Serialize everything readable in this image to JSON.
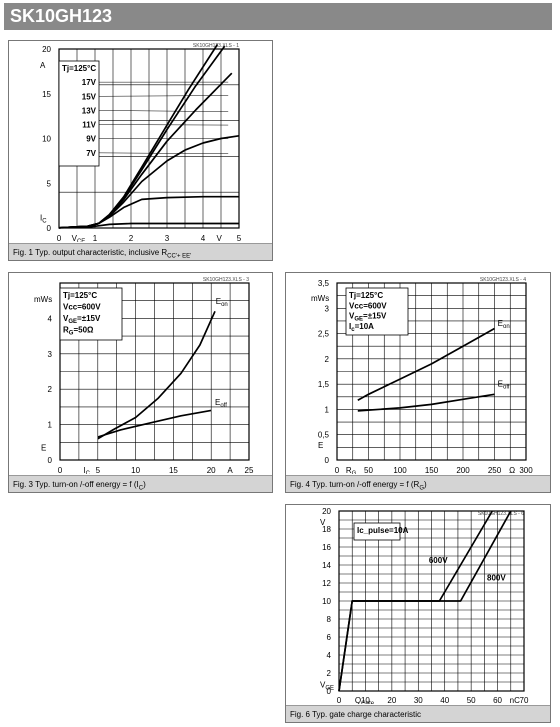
{
  "header": {
    "title": "SK10GH123"
  },
  "charts": [
    {
      "id": "p1",
      "caption": "Fig. 1 Typ. output characteristic, inclusive R",
      "caption_sub": "CC'+ EE'",
      "file_label": "SK10GH123.XLS - 1",
      "chart_data": {
        "type": "line",
        "xlim": [
          0,
          5
        ],
        "ylim": [
          0,
          20
        ],
        "xticks": [
          "0",
          "1",
          "2",
          "3",
          "4",
          "5"
        ],
        "yticks": [
          "0",
          "5",
          "10",
          "15",
          "20"
        ],
        "xlabel": "V",
        "xlabel_sub": "CE",
        "xunit": "V",
        "ylabel": "I",
        "ylabel_sub": "C",
        "yunit": "A",
        "grid": true,
        "box_lines": [
          "Tj=125°C",
          "17V",
          "15V",
          "13V",
          "11V",
          "9V",
          "7V"
        ],
        "series": [
          {
            "name": "17V",
            "points": [
              [
                0,
                0.02
              ],
              [
                0.8,
                0.2
              ],
              [
                1.1,
                0.5
              ],
              [
                1.4,
                1.5
              ],
              [
                1.8,
                3.5
              ],
              [
                2.3,
                6.8
              ],
              [
                3,
                11.5
              ],
              [
                3.6,
                15.5
              ],
              [
                4.4,
                20.5
              ]
            ]
          },
          {
            "name": "15V",
            "points": [
              [
                0,
                0.02
              ],
              [
                0.8,
                0.2
              ],
              [
                1.1,
                0.5
              ],
              [
                1.4,
                1.5
              ],
              [
                1.8,
                3.4
              ],
              [
                2.3,
                6.5
              ],
              [
                3,
                11
              ],
              [
                3.8,
                15.9
              ],
              [
                4.6,
                20.3
              ]
            ]
          },
          {
            "name": "13V",
            "points": [
              [
                0,
                0.02
              ],
              [
                0.8,
                0.2
              ],
              [
                1.1,
                0.5
              ],
              [
                1.4,
                1.4
              ],
              [
                1.8,
                3.2
              ],
              [
                2.3,
                6
              ],
              [
                3,
                9.7
              ],
              [
                3.8,
                13.2
              ],
              [
                4.8,
                17.3
              ]
            ]
          },
          {
            "name": "11V",
            "points": [
              [
                0,
                0.02
              ],
              [
                0.8,
                0.2
              ],
              [
                1.1,
                0.5
              ],
              [
                1.4,
                1.3
              ],
              [
                1.8,
                2.9
              ],
              [
                2.3,
                5.2
              ],
              [
                3,
                7.5
              ],
              [
                3.5,
                8.7
              ],
              [
                4,
                9.5
              ],
              [
                4.5,
                10
              ],
              [
                5,
                10.3
              ]
            ]
          },
          {
            "name": "9V",
            "points": [
              [
                0,
                0.02
              ],
              [
                0.8,
                0.2
              ],
              [
                1.1,
                0.5
              ],
              [
                1.4,
                1.2
              ],
              [
                1.8,
                2.3
              ],
              [
                2.3,
                3.2
              ],
              [
                3,
                3.4
              ],
              [
                4,
                3.5
              ],
              [
                5,
                3.5
              ]
            ]
          },
          {
            "name": "7V",
            "points": [
              [
                0,
                0.02
              ],
              [
                0.8,
                0.1
              ],
              [
                1.1,
                0.25
              ],
              [
                1.4,
                0.4
              ],
              [
                2,
                0.5
              ],
              [
                5,
                0.5
              ]
            ]
          }
        ]
      }
    },
    {
      "id": "p3",
      "caption": "Fig. 3 Typ. turn-on /-off energy = f (I",
      "caption_sub": "C",
      "file_label": "SK10GH123.XLS - 3",
      "chart_data": {
        "type": "line",
        "xlim": [
          0,
          25
        ],
        "ylim": [
          0,
          5
        ],
        "xticks": [
          "0",
          "5",
          "10",
          "15",
          "20",
          "25"
        ],
        "yticks": [
          "0",
          "1",
          "2",
          "3",
          "4"
        ],
        "xlabel": "I",
        "xlabel_sub": "C",
        "xunit": "A",
        "ylabel": "E",
        "yunit": "mWs",
        "grid": true,
        "box_lines": [
          "Tj=125°C",
          "Vcc=600V",
          "V_GE=±15V",
          "R_G=50Ω"
        ],
        "series": [
          {
            "name": "E_on",
            "points": [
              [
                5,
                0.6
              ],
              [
                7,
                0.85
              ],
              [
                10,
                1.2
              ],
              [
                13,
                1.75
              ],
              [
                16,
                2.45
              ],
              [
                18.5,
                3.25
              ],
              [
                20.5,
                4.2
              ]
            ]
          },
          {
            "name": "E_off",
            "points": [
              [
                5,
                0.65
              ],
              [
                8,
                0.85
              ],
              [
                12,
                1.05
              ],
              [
                16,
                1.25
              ],
              [
                20,
                1.4
              ]
            ]
          }
        ]
      }
    },
    {
      "id": "p4",
      "caption": "Fig. 4 Typ. turn-on /-off energy = f (R",
      "caption_sub": "G",
      "file_label": "SK10GH123.XLS - 4",
      "chart_data": {
        "type": "line",
        "xlim": [
          0,
          300
        ],
        "ylim": [
          0,
          3.5
        ],
        "xticks": [
          "0",
          "50",
          "100",
          "150",
          "200",
          "250",
          "300"
        ],
        "yticks": [
          "0",
          "0,5",
          "1",
          "1,5",
          "2",
          "2,5",
          "3",
          "3,5"
        ],
        "xlabel": "R",
        "xlabel_sub": "G",
        "xunit": "Ω",
        "ylabel": "E",
        "yunit": "mWs",
        "grid": true,
        "box_lines": [
          "Tj=125°C",
          "Vcc=600V",
          "V_GE=±15V",
          "I_c=10A"
        ],
        "series": [
          {
            "name": "E_on",
            "points": [
              [
                33,
                1.18
              ],
              [
                50,
                1.3
              ],
              [
                100,
                1.6
              ],
              [
                150,
                1.9
              ],
              [
                200,
                2.25
              ],
              [
                250,
                2.6
              ]
            ]
          },
          {
            "name": "E_off",
            "points": [
              [
                33,
                0.97
              ],
              [
                100,
                1.03
              ],
              [
                150,
                1.1
              ],
              [
                200,
                1.2
              ],
              [
                250,
                1.3
              ]
            ]
          }
        ]
      }
    },
    {
      "id": "p6",
      "caption": "Fig. 6 Typ. gate charge characteristic",
      "caption_sub": "",
      "file_label": "SK10GH123.XLS - 6",
      "chart_data": {
        "type": "line",
        "xlim": [
          0,
          70
        ],
        "ylim": [
          0,
          20
        ],
        "xticks": [
          "0",
          "10",
          "20",
          "30",
          "40",
          "50",
          "60",
          "70"
        ],
        "yticks": [
          "0",
          "2",
          "4",
          "6",
          "8",
          "10",
          "12",
          "14",
          "16",
          "18",
          "20"
        ],
        "xlabel": "Q",
        "xlabel_sub": "Gate",
        "xunit": "nC",
        "ylabel": "V",
        "ylabel_sub": "GE",
        "yunit": "V",
        "grid": true,
        "box_lines": [
          "Ic_pulse=10A"
        ],
        "series": [
          {
            "name": "600V",
            "points": [
              [
                0,
                0
              ],
              [
                5,
                10
              ],
              [
                38,
                10
              ],
              [
                58,
                20
              ]
            ]
          },
          {
            "name": "800V",
            "points": [
              [
                0,
                0
              ],
              [
                5,
                10
              ],
              [
                46,
                10
              ],
              [
                65,
                20
              ]
            ]
          }
        ],
        "annotations": [
          "600V",
          "800V"
        ]
      }
    }
  ]
}
